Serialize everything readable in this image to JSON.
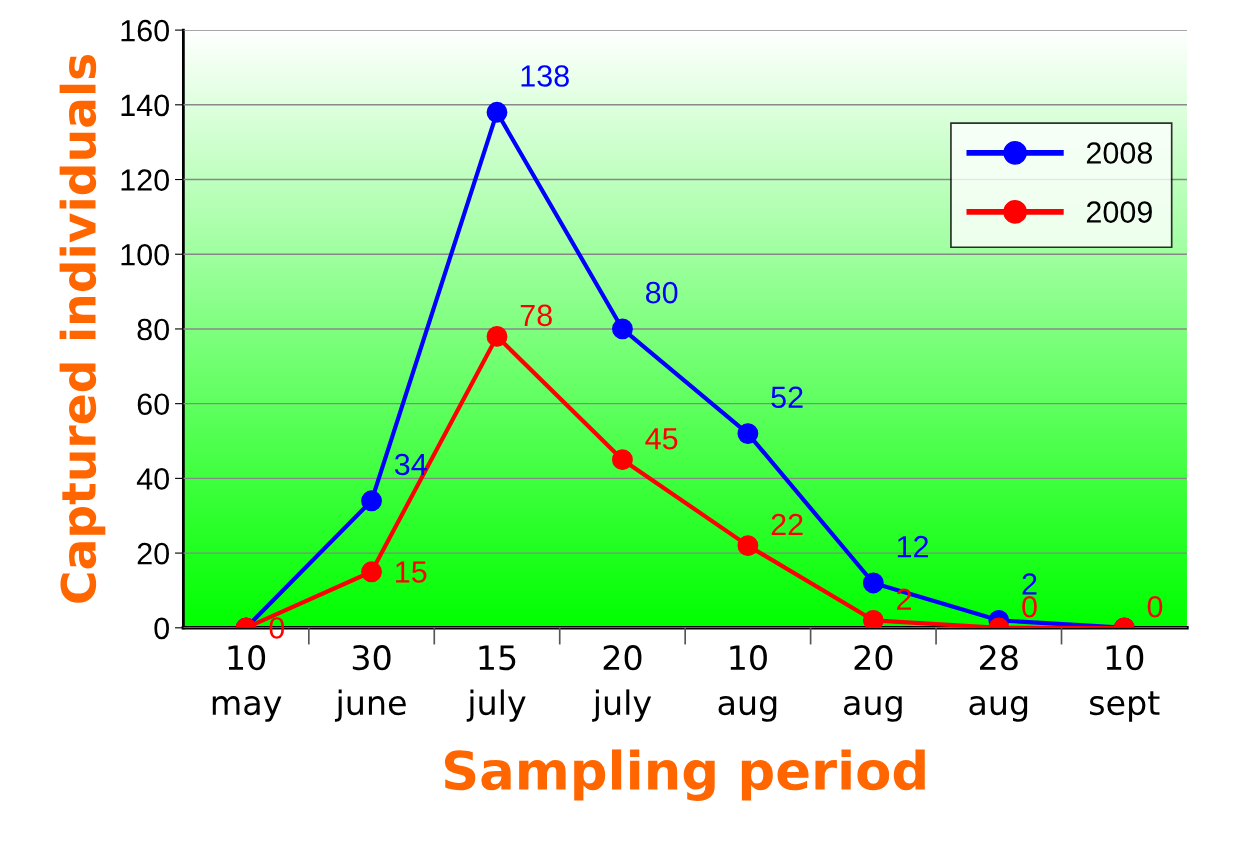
{
  "chart_data": {
    "type": "line",
    "xlabel": "Sampling period",
    "ylabel": "Captured individuals",
    "categories": [
      "10\nmay",
      "30\njune",
      "15\njuly",
      "20\njuly",
      "10\naug",
      "20\naug",
      "28\naug",
      "10\nsept"
    ],
    "series": [
      {
        "name": "2008",
        "color": "#0000ff",
        "values": [
          0,
          34,
          138,
          80,
          52,
          12,
          2,
          0
        ],
        "value_labels": [
          null,
          "34",
          "138",
          "80",
          "52",
          "12",
          "2",
          null
        ]
      },
      {
        "name": "2009",
        "color": "#ff0000",
        "values": [
          0,
          15,
          78,
          45,
          22,
          2,
          0,
          0
        ],
        "value_labels": [
          "0",
          "15",
          "78",
          "45",
          "22",
          "2",
          "0",
          "0"
        ]
      }
    ],
    "ylim": [
      0,
      160
    ],
    "yticks": [
      0,
      20,
      40,
      60,
      80,
      100,
      120,
      140,
      160
    ],
    "grid": "y",
    "legend": "top right",
    "marker": "circle",
    "line_style": "solid"
  }
}
